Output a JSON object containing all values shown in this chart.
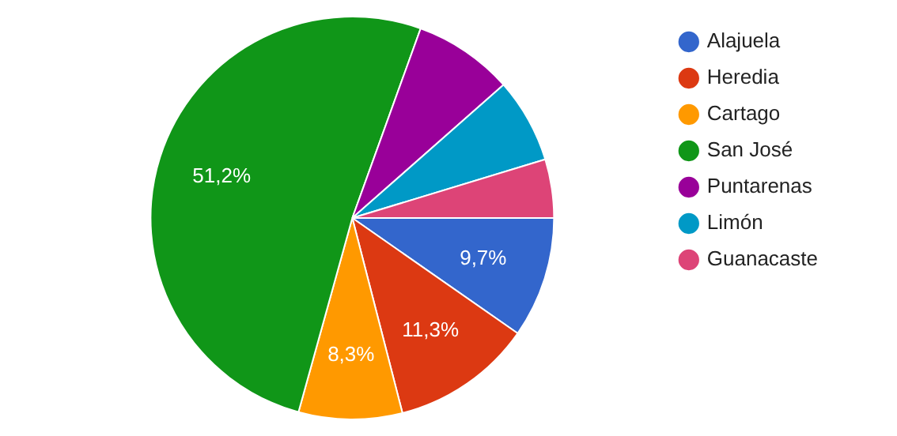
{
  "chart_data": {
    "type": "pie",
    "categories": [
      "Alajuela",
      "Heredia",
      "Cartago",
      "San José",
      "Puntarenas",
      "Limón",
      "Guanacaste"
    ],
    "values": [
      9.7,
      11.3,
      8.3,
      51.2,
      8.0,
      6.8,
      4.7
    ],
    "colors": [
      "#3366cc",
      "#dc3912",
      "#ff9900",
      "#109618",
      "#990099",
      "#0099c6",
      "#dd4477"
    ],
    "value_labels": [
      "9,7%",
      "11,3%",
      "8,3%",
      "51,2%",
      null,
      null,
      null
    ],
    "legend": "right"
  }
}
